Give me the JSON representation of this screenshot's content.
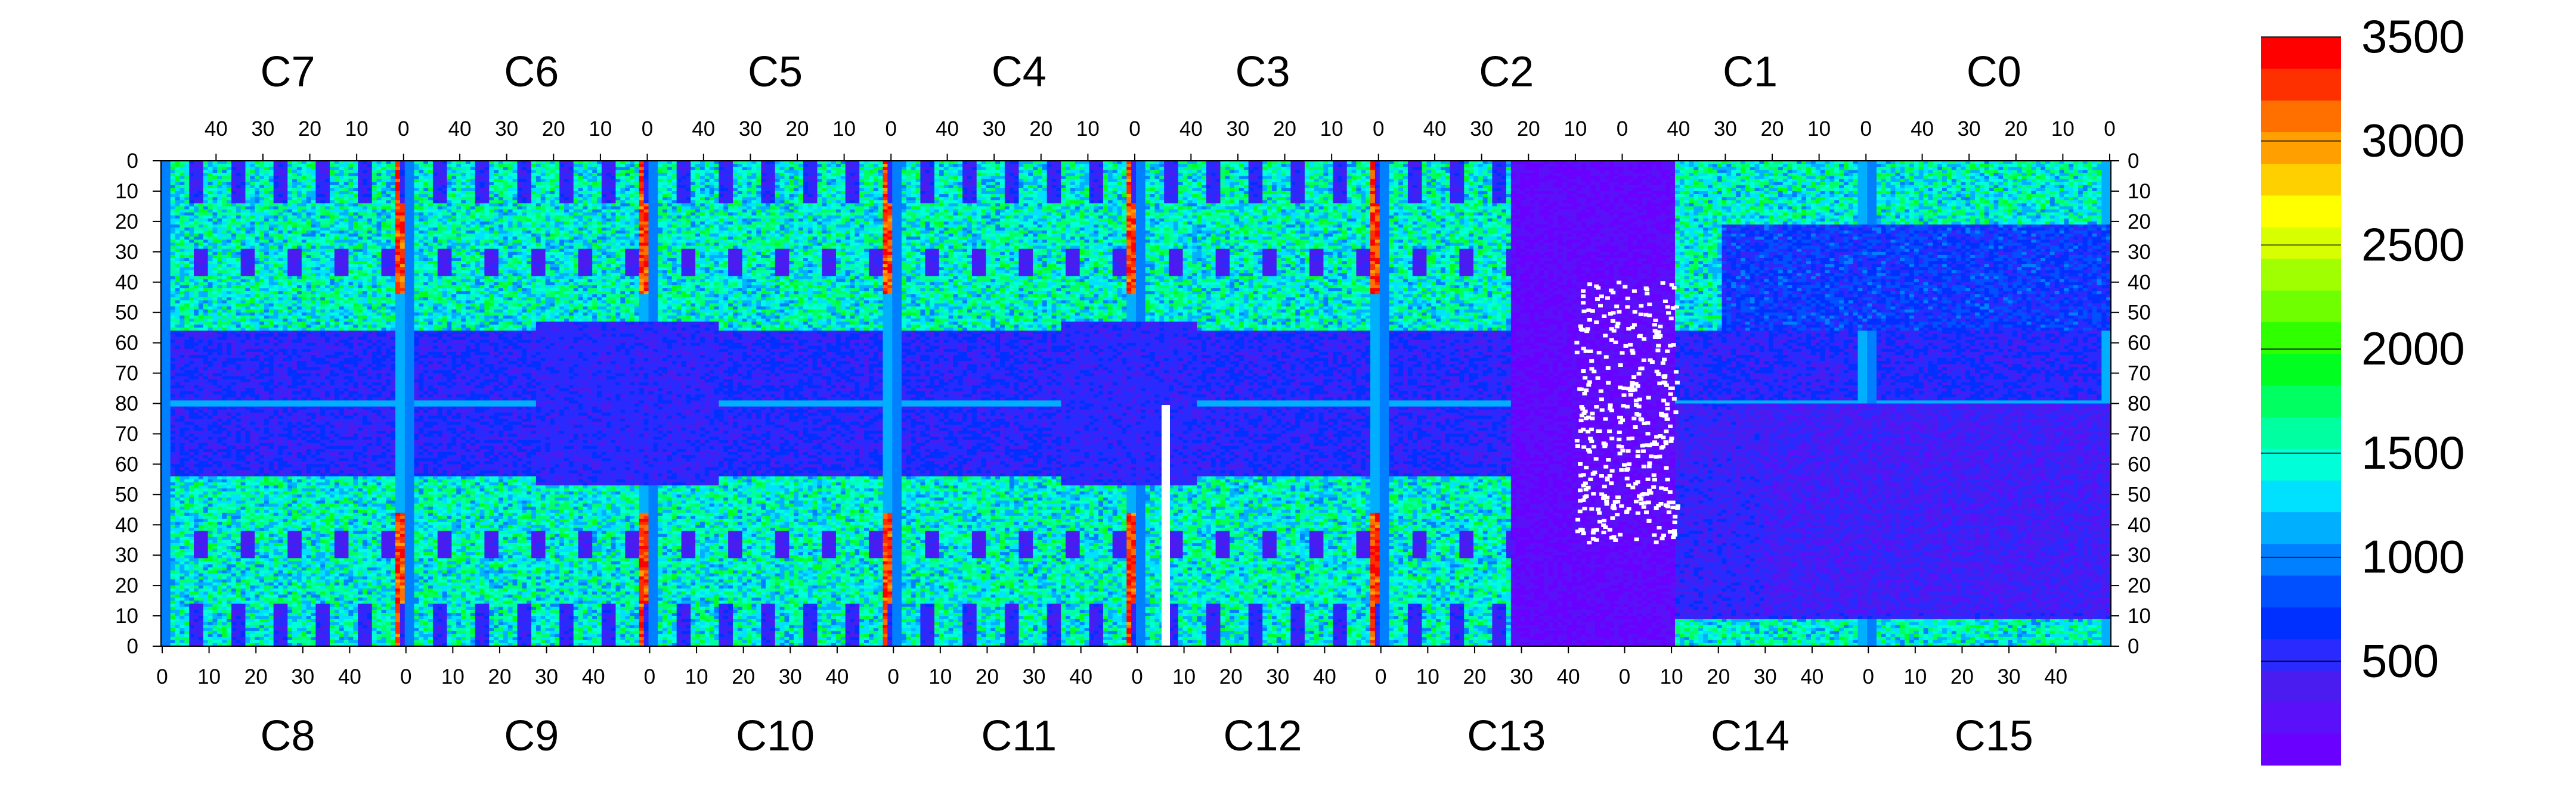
{
  "chart_data": {
    "type": "heatmap",
    "title": "",
    "xlabel": "",
    "ylabel": "",
    "top_chips": [
      "C7",
      "C6",
      "C5",
      "C4",
      "C3",
      "C2",
      "C1",
      "C0"
    ],
    "bottom_chips": [
      "C8",
      "C9",
      "C10",
      "C11",
      "C12",
      "C13",
      "C14",
      "C15"
    ],
    "top_tick_labels": [
      "40",
      "30",
      "20",
      "10",
      "0"
    ],
    "bottom_tick_labels": [
      "0",
      "10",
      "20",
      "30",
      "40"
    ],
    "left_axis_top_half": [
      "0",
      "10",
      "20",
      "30",
      "40",
      "50",
      "60",
      "70",
      "80"
    ],
    "left_axis_bottom_half": [
      "70",
      "60",
      "50",
      "40",
      "30",
      "20",
      "10",
      "0"
    ],
    "columns_per_chip": 52,
    "rows_per_half": 80,
    "colorbar": {
      "min": 0,
      "max": 3500,
      "tick_labels": [
        "500",
        "1000",
        "1500",
        "2000",
        "2500",
        "3000",
        "3500"
      ],
      "bands": [
        "#6a00ff",
        "#5a10f8",
        "#4a1cf0",
        "#2a2aff",
        "#0030ff",
        "#0050ff",
        "#0080ff",
        "#00b0ff",
        "#00e0ff",
        "#00ffd8",
        "#00ffa0",
        "#00ff60",
        "#00ff20",
        "#30ff00",
        "#70ff00",
        "#a0ff00",
        "#d8ff00",
        "#ffff00",
        "#ffd000",
        "#ffa000",
        "#ff7000",
        "#ff3000",
        "#ff0000"
      ]
    },
    "grid": false,
    "legend": "colorbar-right",
    "description_values": {
      "low_occupancy_regions": [
        "C13",
        "C14",
        "C15 lower rows"
      ],
      "high_edge_columns": "red stripes at chip boundaries (~3000-3500)",
      "typical_level": "~1200-2000"
    }
  }
}
